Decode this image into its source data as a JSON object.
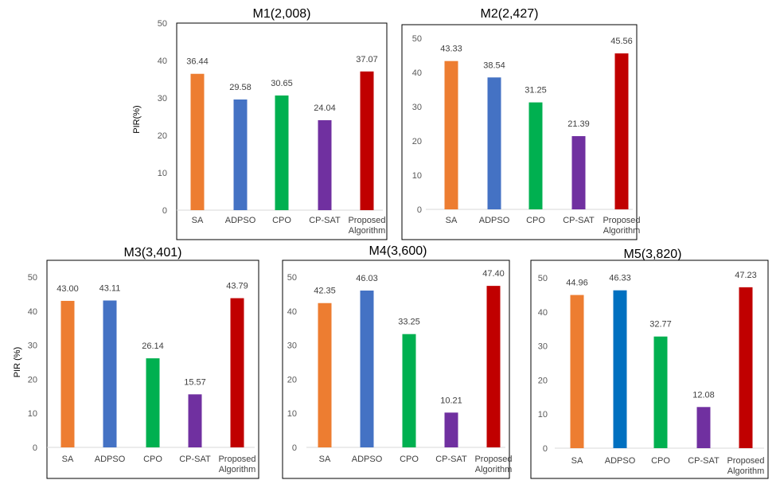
{
  "chart_data": [
    {
      "type": "bar",
      "title": "M1(2,008)",
      "ylabel": "PIR(%)",
      "categories": [
        "SA",
        "ADPSO",
        "CPO",
        "CP-SAT",
        "Proposed Algorithm"
      ],
      "values": [
        36.44,
        29.58,
        30.65,
        24.04,
        37.07
      ],
      "ylim": [
        0,
        50
      ],
      "yticks": [
        0,
        10,
        20,
        30,
        40,
        50
      ],
      "grid": false,
      "colors": [
        "#ED7D31",
        "#4472C4",
        "#00B050",
        "#7030A0",
        "#C00000"
      ]
    },
    {
      "type": "bar",
      "title": "M2(2,427)",
      "ylabel": "",
      "categories": [
        "SA",
        "ADPSO",
        "CPO",
        "CP-SAT",
        "Proposed Algorithm"
      ],
      "values": [
        43.33,
        38.54,
        31.25,
        21.39,
        45.56
      ],
      "ylim": [
        0,
        50
      ],
      "yticks": [
        0,
        10,
        20,
        30,
        40,
        50
      ],
      "grid": false,
      "colors": [
        "#ED7D31",
        "#4472C4",
        "#00B050",
        "#7030A0",
        "#C00000"
      ]
    },
    {
      "type": "bar",
      "title": "M3(3,401)",
      "ylabel": "PIR (%)",
      "categories": [
        "SA",
        "ADPSO",
        "CPO",
        "CP-SAT",
        "Proposed Algorithm"
      ],
      "values": [
        43.0,
        43.11,
        26.14,
        15.57,
        43.79
      ],
      "ylim": [
        0,
        50
      ],
      "yticks": [
        0,
        10,
        20,
        30,
        40,
        50
      ],
      "grid": false,
      "colors": [
        "#ED7D31",
        "#4472C4",
        "#00B050",
        "#7030A0",
        "#C00000"
      ]
    },
    {
      "type": "bar",
      "title": "M4(3,600)",
      "ylabel": "",
      "categories": [
        "SA",
        "ADPSO",
        "CPO",
        "CP-SAT",
        "Proposed Algorithm"
      ],
      "values": [
        42.35,
        46.03,
        33.25,
        10.21,
        47.4
      ],
      "ylim": [
        0,
        50
      ],
      "yticks": [
        0,
        10,
        20,
        30,
        40,
        50
      ],
      "grid": false,
      "colors": [
        "#ED7D31",
        "#4472C4",
        "#00B050",
        "#7030A0",
        "#C00000"
      ]
    },
    {
      "type": "bar",
      "title": "M5(3,820)",
      "ylabel": "",
      "categories": [
        "SA",
        "ADPSO",
        "CPO",
        "CP-SAT",
        "Proposed Algorithm"
      ],
      "values": [
        44.96,
        46.33,
        32.77,
        12.08,
        47.23
      ],
      "ylim": [
        0,
        50
      ],
      "yticks": [
        0,
        10,
        20,
        30,
        40,
        50
      ],
      "grid": false,
      "colors": [
        "#ED7D31",
        "#0070C0",
        "#00B050",
        "#7030A0",
        "#C00000"
      ]
    }
  ]
}
